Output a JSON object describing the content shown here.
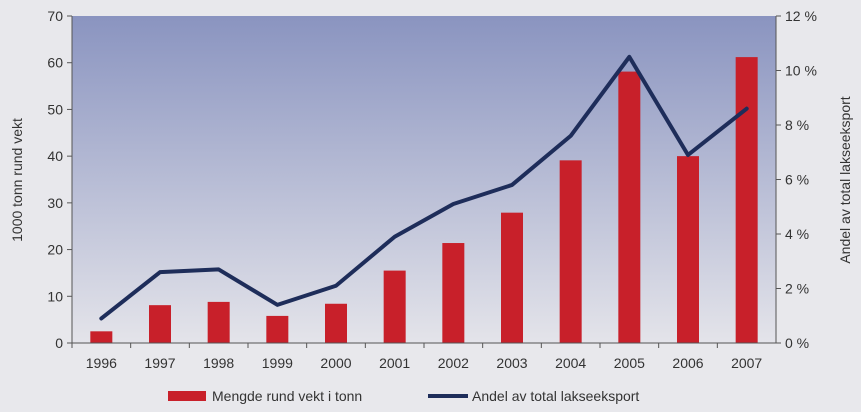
{
  "chart_data": {
    "type": "bar",
    "categories": [
      "1996",
      "1997",
      "1998",
      "1999",
      "2000",
      "2001",
      "2002",
      "2003",
      "2004",
      "2005",
      "2006",
      "2007"
    ],
    "series": [
      {
        "name": "Mengde rund vekt i tonn",
        "kind": "bar",
        "axis": "left",
        "values": [
          2.5,
          8.1,
          8.8,
          5.8,
          8.4,
          15.5,
          21.4,
          27.9,
          39.1,
          58.1,
          40.0,
          61.2
        ]
      },
      {
        "name": "Andel av total lakseeksport",
        "kind": "line",
        "axis": "right",
        "values": [
          0.9,
          2.6,
          2.7,
          1.4,
          2.1,
          3.9,
          5.1,
          5.8,
          7.6,
          10.5,
          6.9,
          8.6
        ]
      }
    ],
    "ylabel": "1000 tonn rund vekt",
    "y2label": "Andel av total lakseeksport",
    "ylim": [
      0,
      70
    ],
    "y2lim": [
      0,
      12
    ],
    "yticks": [
      "0",
      "10",
      "20",
      "30",
      "40",
      "50",
      "60",
      "70"
    ],
    "y2ticks": [
      "0 %",
      "2 %",
      "4 %",
      "6 %",
      "8 %",
      "10 %",
      "12 %"
    ],
    "legend_position": "bottom",
    "colors": {
      "bar": "#c8202a",
      "line": "#1e2d5a",
      "plot_top": "#8a94c0",
      "plot_bottom": "#e4e4ea"
    }
  }
}
